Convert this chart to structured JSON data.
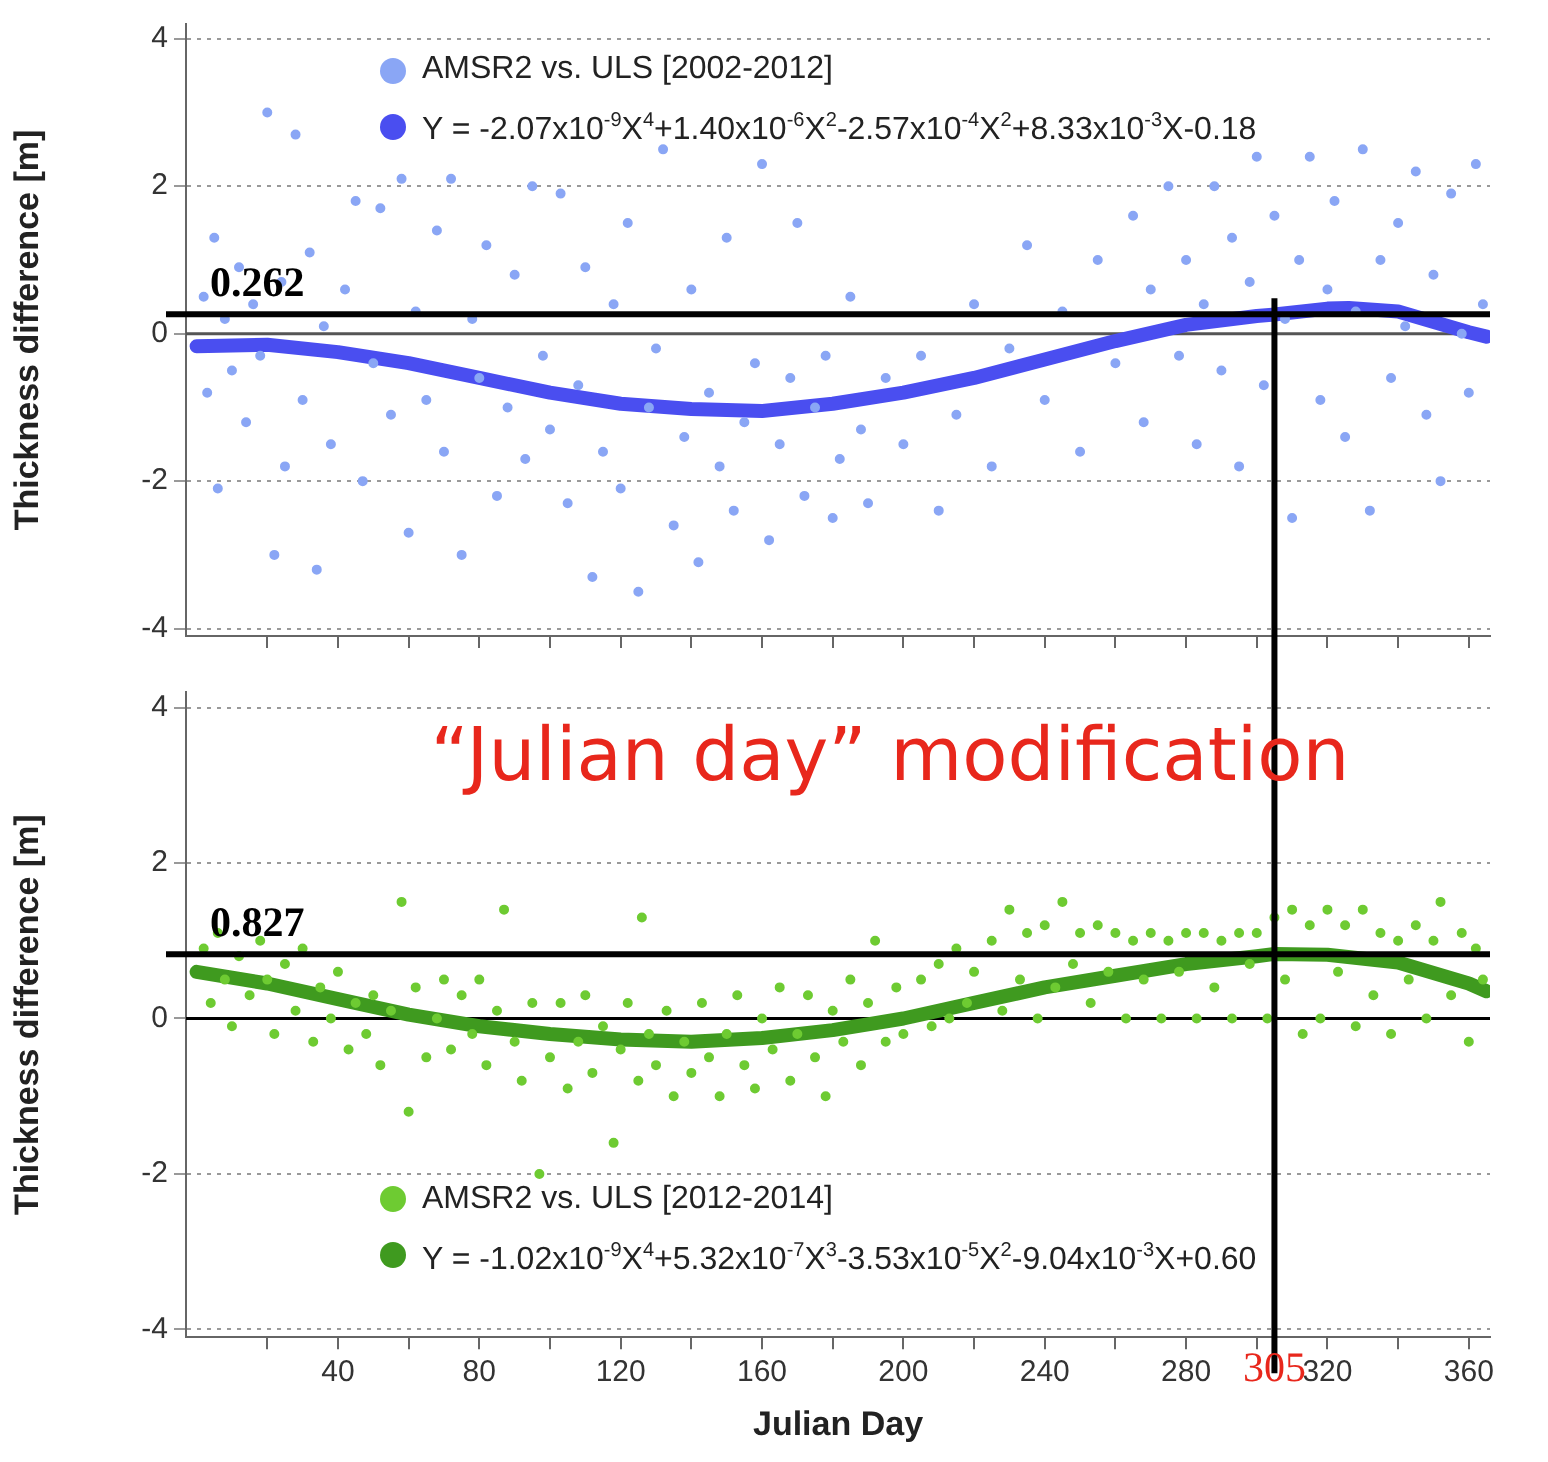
{
  "chart_data": [
    {
      "type": "scatter",
      "ylabel": "Thickness difference [m]",
      "xlim": [
        -3,
        366
      ],
      "ylim": [
        -4.1,
        4.2
      ],
      "xticks": [
        {
          "value": 20,
          "label": null
        },
        {
          "value": 40,
          "label": null
        },
        {
          "value": 60,
          "label": null
        },
        {
          "value": 80,
          "label": null
        },
        {
          "value": 100,
          "label": null
        },
        {
          "value": 120,
          "label": null
        },
        {
          "value": 140,
          "label": null
        },
        {
          "value": 160,
          "label": null
        },
        {
          "value": 180,
          "label": null
        },
        {
          "value": 200,
          "label": null
        },
        {
          "value": 220,
          "label": null
        },
        {
          "value": 240,
          "label": null
        },
        {
          "value": 260,
          "label": null
        },
        {
          "value": 280,
          "label": null
        },
        {
          "value": 300,
          "label": null
        },
        {
          "value": 320,
          "label": null
        },
        {
          "value": 340,
          "label": null
        },
        {
          "value": 360,
          "label": null
        }
      ],
      "yticks": [
        -4,
        -2,
        0,
        2,
        4
      ],
      "grid": "y",
      "legend": "top left",
      "marker": "circle",
      "tick_labels": "y",
      "series": [
        {
          "name": "AMSR2 vs. ULS [2002-2012]",
          "color": "#8aa6f5",
          "type": "scatter",
          "x": [
            2,
            3,
            5,
            6,
            8,
            10,
            12,
            14,
            16,
            18,
            20,
            22,
            24,
            25,
            28,
            30,
            32,
            34,
            36,
            38,
            42,
            45,
            47,
            50,
            52,
            55,
            58,
            60,
            62,
            65,
            68,
            70,
            72,
            75,
            78,
            80,
            82,
            85,
            88,
            90,
            93,
            95,
            98,
            100,
            103,
            105,
            108,
            110,
            112,
            115,
            118,
            120,
            122,
            125,
            128,
            130,
            132,
            135,
            138,
            140,
            142,
            145,
            148,
            150,
            152,
            155,
            158,
            160,
            162,
            165,
            168,
            170,
            172,
            175,
            178,
            180,
            182,
            185,
            188,
            190,
            195,
            200,
            205,
            210,
            215,
            220,
            225,
            230,
            235,
            240,
            245,
            250,
            255,
            260,
            265,
            268,
            270,
            275,
            278,
            280,
            283,
            285,
            288,
            290,
            293,
            295,
            298,
            300,
            302,
            305,
            308,
            310,
            312,
            315,
            318,
            320,
            322,
            325,
            328,
            330,
            332,
            335,
            338,
            340,
            342,
            345,
            348,
            350,
            352,
            355,
            358,
            360,
            362,
            364
          ],
          "values": [
            0.5,
            -0.8,
            1.3,
            -2.1,
            0.2,
            -0.5,
            0.9,
            -1.2,
            0.4,
            -0.3,
            3.0,
            -3.0,
            0.7,
            -1.8,
            2.7,
            -0.9,
            1.1,
            -3.2,
            0.1,
            -1.5,
            0.6,
            1.8,
            -2.0,
            -0.4,
            1.7,
            -1.1,
            2.1,
            -2.7,
            0.3,
            -0.9,
            1.4,
            -1.6,
            2.1,
            -3.0,
            0.2,
            -0.6,
            1.2,
            -2.2,
            -1.0,
            0.8,
            -1.7,
            2.0,
            -0.3,
            -1.3,
            1.9,
            -2.3,
            -0.7,
            0.9,
            -3.3,
            -1.6,
            0.4,
            -2.1,
            1.5,
            -3.5,
            -1.0,
            -0.2,
            2.5,
            -2.6,
            -1.4,
            0.6,
            -3.1,
            -0.8,
            -1.8,
            1.3,
            -2.4,
            -1.2,
            -0.4,
            2.3,
            -2.8,
            -1.5,
            -0.6,
            1.5,
            -2.2,
            -1.0,
            -0.3,
            -2.5,
            -1.7,
            0.5,
            -1.3,
            -2.3,
            -0.6,
            -1.5,
            -0.3,
            -2.4,
            -1.1,
            0.4,
            -1.8,
            -0.2,
            1.2,
            -0.9,
            0.3,
            -1.6,
            1.0,
            -0.4,
            1.6,
            -1.2,
            0.6,
            2.0,
            -0.3,
            1.0,
            -1.5,
            0.4,
            2.0,
            -0.5,
            1.3,
            -1.8,
            0.7,
            2.4,
            -0.7,
            1.6,
            0.2,
            -2.5,
            1.0,
            2.4,
            -0.9,
            0.6,
            1.8,
            -1.4,
            0.3,
            2.5,
            -2.4,
            1.0,
            -0.6,
            1.5,
            0.1,
            2.2,
            -1.1,
            0.8,
            -2.0,
            1.9,
            0.0,
            -0.8,
            2.3,
            0.4
          ]
        },
        {
          "name": "Y = -2.07x10$^{-9}$X$^{4}$+1.40x10$^{-6}$X$^{2}$-2.57x10$^{-4}$X$^{2}$+8.33x10$^{-3}$X-0.18",
          "color": "#4a4ef0",
          "type": "line",
          "marker": "none",
          "x": [
            0,
            20,
            40,
            60,
            80,
            100,
            120,
            140,
            160,
            180,
            200,
            220,
            240,
            260,
            280,
            300,
            305,
            320,
            326,
            340,
            360,
            365
          ],
          "values": [
            -0.17,
            -0.15,
            -0.25,
            -0.4,
            -0.6,
            -0.8,
            -0.95,
            -1.02,
            -1.05,
            -0.95,
            -0.8,
            -0.6,
            -0.35,
            -0.1,
            0.12,
            0.24,
            0.26,
            0.34,
            0.35,
            0.3,
            0.02,
            -0.04
          ]
        }
      ],
      "ref_lines": [
        {
          "axis": "y",
          "value": 0,
          "label": null,
          "color": "#555555"
        },
        {
          "axis": "y",
          "value": 0.262,
          "label": "0.262",
          "color": "#000000"
        },
        {
          "axis": "x",
          "value": 305,
          "label": null,
          "color": "#000000"
        }
      ]
    },
    {
      "type": "scatter",
      "xlabel": "Julian Day",
      "ylabel": "Thickness difference [m]",
      "xlim": [
        -3,
        366
      ],
      "ylim": [
        -4.1,
        4.2
      ],
      "xticks": [
        {
          "value": 20,
          "label": null
        },
        40,
        {
          "value": 60,
          "label": null
        },
        80,
        {
          "value": 100,
          "label": null
        },
        120,
        {
          "value": 140,
          "label": null
        },
        160,
        {
          "value": 180,
          "label": null
        },
        200,
        {
          "value": 220,
          "label": null
        },
        240,
        {
          "value": 260,
          "label": null
        },
        280,
        {
          "value": 300,
          "label": null
        },
        320,
        {
          "value": 340,
          "label": null
        },
        360
      ],
      "yticks": [
        -4,
        -2,
        0,
        2,
        4
      ],
      "grid": "y",
      "legend": "bottom left",
      "marker": "circle",
      "annotations": [
        "“Julian day” modification"
      ],
      "series": [
        {
          "name": "AMSR2 vs. ULS [2012-2014]",
          "color": "#6ecb32",
          "type": "scatter",
          "x": [
            2,
            4,
            6,
            8,
            10,
            12,
            15,
            18,
            20,
            22,
            25,
            28,
            30,
            33,
            35,
            38,
            40,
            43,
            45,
            48,
            50,
            52,
            55,
            58,
            60,
            62,
            65,
            68,
            70,
            72,
            75,
            78,
            80,
            82,
            85,
            87,
            90,
            92,
            95,
            97,
            100,
            103,
            105,
            108,
            110,
            112,
            115,
            118,
            120,
            122,
            125,
            126,
            128,
            130,
            133,
            135,
            138,
            140,
            143,
            145,
            148,
            150,
            153,
            155,
            158,
            160,
            163,
            165,
            168,
            170,
            173,
            175,
            178,
            180,
            183,
            185,
            188,
            190,
            192,
            195,
            198,
            200,
            205,
            208,
            210,
            213,
            215,
            218,
            220,
            225,
            228,
            230,
            233,
            235,
            238,
            240,
            243,
            245,
            248,
            250,
            253,
            255,
            258,
            260,
            263,
            265,
            268,
            270,
            273,
            275,
            278,
            280,
            283,
            285,
            288,
            290,
            293,
            295,
            298,
            300,
            303,
            305,
            308,
            310,
            313,
            315,
            318,
            320,
            323,
            325,
            328,
            330,
            333,
            335,
            338,
            340,
            343,
            345,
            348,
            350,
            352,
            355,
            358,
            360,
            362,
            364
          ],
          "values": [
            0.9,
            0.2,
            1.1,
            0.5,
            -0.1,
            0.8,
            0.3,
            1.0,
            0.5,
            -0.2,
            0.7,
            0.1,
            0.9,
            -0.3,
            0.4,
            0.0,
            0.6,
            -0.4,
            0.2,
            -0.2,
            0.3,
            -0.6,
            0.1,
            1.5,
            -1.2,
            0.4,
            -0.5,
            0.0,
            0.5,
            -0.4,
            0.3,
            -0.2,
            0.5,
            -0.6,
            0.1,
            1.4,
            -0.3,
            -0.8,
            0.2,
            -2.0,
            -0.5,
            0.2,
            -0.9,
            -0.3,
            0.3,
            -0.7,
            -0.1,
            -1.6,
            -0.4,
            0.2,
            -0.8,
            1.3,
            -0.2,
            -0.6,
            0.1,
            -1.0,
            -0.3,
            -0.7,
            0.2,
            -0.5,
            -1.0,
            -0.2,
            0.3,
            -0.6,
            -0.9,
            0.0,
            -0.4,
            0.4,
            -0.8,
            -0.2,
            0.3,
            -0.5,
            -1.0,
            0.1,
            -0.3,
            0.5,
            -0.6,
            0.2,
            1.0,
            -0.3,
            0.4,
            -0.2,
            0.5,
            -0.1,
            0.7,
            0.0,
            0.9,
            0.2,
            0.6,
            1.0,
            0.1,
            1.4,
            0.5,
            1.1,
            0.0,
            1.2,
            0.4,
            1.5,
            0.7,
            1.1,
            0.2,
            1.2,
            0.6,
            1.1,
            0.0,
            1.0,
            0.5,
            1.1,
            0.0,
            1.0,
            0.6,
            1.1,
            0.0,
            1.1,
            0.4,
            1.0,
            0.0,
            1.1,
            0.7,
            1.1,
            0.0,
            1.3,
            0.5,
            1.4,
            -0.2,
            1.2,
            0.0,
            1.4,
            0.6,
            1.2,
            -0.1,
            1.4,
            0.3,
            1.1,
            -0.2,
            1.0,
            0.5,
            1.2,
            0.0,
            1.0,
            1.5,
            0.3,
            1.1,
            -0.3,
            0.9,
            0.5
          ]
        },
        {
          "name": "Y = -1.02x10$^{-9}$X$^{4}$+5.32x10$^{-7}$X$^{3}$-3.53x10$^{-5}$X$^{2}$-9.04x10$^{-3}$X+0.60",
          "color": "#3f9a1f",
          "type": "line",
          "marker": "none",
          "x": [
            0,
            20,
            40,
            60,
            80,
            100,
            120,
            140,
            160,
            180,
            200,
            220,
            240,
            260,
            280,
            300,
            305,
            320,
            340,
            360,
            365
          ],
          "values": [
            0.6,
            0.45,
            0.25,
            0.05,
            -0.1,
            -0.2,
            -0.27,
            -0.3,
            -0.25,
            -0.15,
            0.0,
            0.2,
            0.4,
            0.55,
            0.7,
            0.8,
            0.83,
            0.82,
            0.72,
            0.45,
            0.35
          ]
        }
      ],
      "ref_lines": [
        {
          "axis": "y",
          "value": 0,
          "label": null,
          "color": "#000000"
        },
        {
          "axis": "y",
          "value": 0.827,
          "label": "0.827",
          "color": "#000000"
        },
        {
          "axis": "x",
          "value": 305,
          "label": "305",
          "color": "#000000"
        }
      ]
    }
  ]
}
